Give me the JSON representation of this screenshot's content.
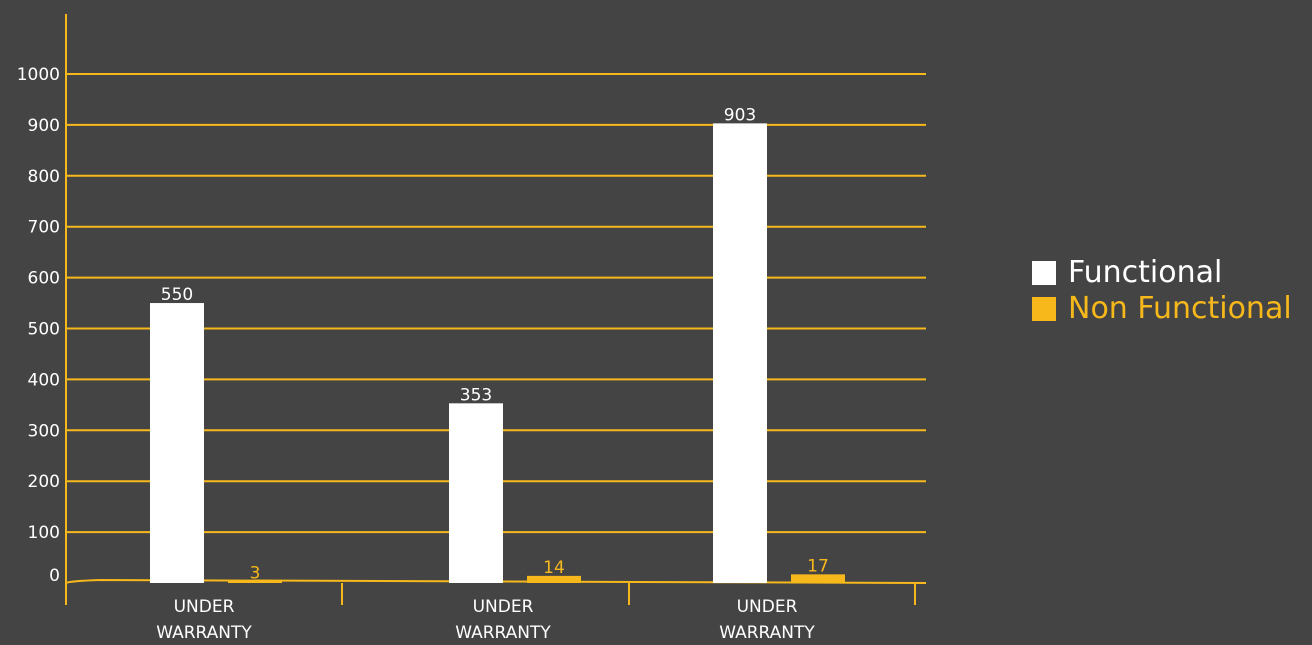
{
  "colors": {
    "background": "#444444",
    "accent": "#f6b81b",
    "functional": "#ffffff",
    "axis_text": "#ffffff"
  },
  "chart_data": {
    "type": "bar",
    "categories": [
      "UNDER\nWARRANTY",
      "UNDER\nWARRANTY",
      "UNDER\nWARRANTY"
    ],
    "series": [
      {
        "name": "Functional",
        "values": [
          550,
          353,
          903
        ],
        "color": "#ffffff"
      },
      {
        "name": "Non Functional",
        "values": [
          3,
          14,
          17
        ],
        "color": "#f6b81b"
      }
    ],
    "ylim": [
      0,
      1000
    ],
    "yticks": [
      0,
      100,
      200,
      300,
      400,
      500,
      600,
      700,
      800,
      900,
      1000
    ],
    "grid": true,
    "legend": "right"
  }
}
